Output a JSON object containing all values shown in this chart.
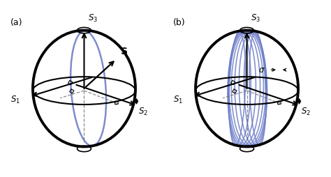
{
  "sphere_color": "#000000",
  "sphere_lw": 2.8,
  "axes_color": "#000000",
  "curve_color": "#7080c8",
  "dashed_color": "#666666",
  "bg_color": "#ffffff",
  "fig_width": 4.74,
  "fig_height": 2.54,
  "dpi": 100
}
